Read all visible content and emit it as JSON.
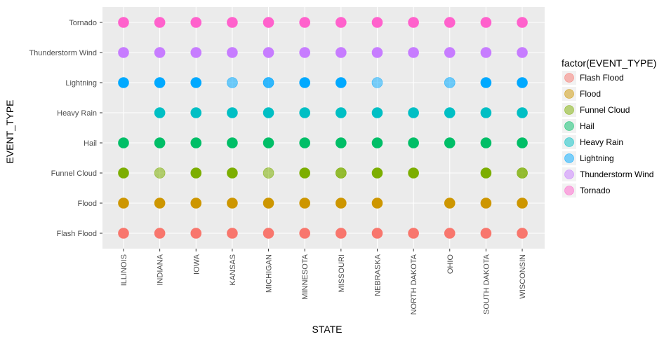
{
  "chart_data": {
    "type": "scatter",
    "xlabel": "STATE",
    "ylabel": "EVENT_TYPE",
    "grid": true,
    "legend_position": "right",
    "legend_title": "factor(EVENT_TYPE)",
    "categories": [
      "ILLINOIS",
      "INDIANA",
      "IOWA",
      "KANSAS",
      "MICHIGAN",
      "MINNESOTA",
      "MISSOURI",
      "NEBRASKA",
      "NORTH DAKOTA",
      "OHIO",
      "SOUTH DAKOTA",
      "WISCONSIN"
    ],
    "y_categories": [
      "Flash Flood",
      "Flood",
      "Funnel Cloud",
      "Hail",
      "Heavy Rain",
      "Lightning",
      "Thunderstorm Wind",
      "Tornado"
    ],
    "series": [
      {
        "name": "Flash Flood",
        "color": "#F8766D",
        "x": [
          "ILLINOIS",
          "INDIANA",
          "IOWA",
          "KANSAS",
          "MICHIGAN",
          "MINNESOTA",
          "MISSOURI",
          "NEBRASKA",
          "NORTH DAKOTA",
          "OHIO",
          "SOUTH DAKOTA",
          "WISCONSIN"
        ],
        "alpha": [
          1,
          1,
          1,
          1,
          1,
          1,
          1,
          1,
          1,
          1,
          1,
          1
        ]
      },
      {
        "name": "Flood",
        "color": "#CD9600",
        "x": [
          "ILLINOIS",
          "INDIANA",
          "IOWA",
          "KANSAS",
          "MICHIGAN",
          "MINNESOTA",
          "MISSOURI",
          "NEBRASKA",
          "OHIO",
          "SOUTH DAKOTA",
          "WISCONSIN"
        ],
        "alpha": [
          1,
          1,
          1,
          1,
          1,
          1,
          1,
          1,
          1,
          1,
          1
        ]
      },
      {
        "name": "Funnel Cloud",
        "color": "#7CAE00",
        "x": [
          "ILLINOIS",
          "INDIANA",
          "IOWA",
          "KANSAS",
          "MICHIGAN",
          "MINNESOTA",
          "MISSOURI",
          "NEBRASKA",
          "NORTH DAKOTA",
          "SOUTH DAKOTA",
          "WISCONSIN"
        ],
        "alpha": [
          1,
          0.55,
          1,
          1,
          0.55,
          1,
          0.8,
          1,
          1,
          1,
          0.8
        ]
      },
      {
        "name": "Hail",
        "color": "#00BE67",
        "x": [
          "ILLINOIS",
          "INDIANA",
          "IOWA",
          "KANSAS",
          "MICHIGAN",
          "MINNESOTA",
          "MISSOURI",
          "NEBRASKA",
          "NORTH DAKOTA",
          "OHIO",
          "SOUTH DAKOTA",
          "WISCONSIN"
        ],
        "alpha": [
          1,
          1,
          1,
          1,
          1,
          1,
          1,
          1,
          1,
          1,
          1,
          1
        ]
      },
      {
        "name": "Heavy Rain",
        "color": "#00BFC4",
        "x": [
          "INDIANA",
          "IOWA",
          "KANSAS",
          "MICHIGAN",
          "MINNESOTA",
          "MISSOURI",
          "NEBRASKA",
          "NORTH DAKOTA",
          "OHIO",
          "SOUTH DAKOTA",
          "WISCONSIN"
        ],
        "alpha": [
          1,
          1,
          1,
          1,
          1,
          1,
          1,
          1,
          1,
          1,
          1
        ]
      },
      {
        "name": "Lightning",
        "color": "#00A9FF",
        "x": [
          "ILLINOIS",
          "INDIANA",
          "IOWA",
          "KANSAS",
          "MICHIGAN",
          "MINNESOTA",
          "MISSOURI",
          "NEBRASKA",
          "OHIO",
          "SOUTH DAKOTA",
          "WISCONSIN"
        ],
        "alpha": [
          1,
          1,
          1,
          0.55,
          0.8,
          1,
          1,
          0.5,
          0.55,
          1,
          1
        ]
      },
      {
        "name": "Thunderstorm Wind",
        "color": "#C77CFF",
        "x": [
          "ILLINOIS",
          "INDIANA",
          "IOWA",
          "KANSAS",
          "MICHIGAN",
          "MINNESOTA",
          "MISSOURI",
          "NEBRASKA",
          "NORTH DAKOTA",
          "OHIO",
          "SOUTH DAKOTA",
          "WISCONSIN"
        ],
        "alpha": [
          1,
          1,
          1,
          1,
          1,
          1,
          1,
          1,
          1,
          1,
          1,
          1
        ]
      },
      {
        "name": "Tornado",
        "color": "#FF61CC",
        "x": [
          "ILLINOIS",
          "INDIANA",
          "IOWA",
          "KANSAS",
          "MICHIGAN",
          "MINNESOTA",
          "MISSOURI",
          "NEBRASKA",
          "NORTH DAKOTA",
          "OHIO",
          "SOUTH DAKOTA",
          "WISCONSIN"
        ],
        "alpha": [
          1,
          1,
          1,
          1,
          1,
          1,
          1,
          1,
          1,
          1,
          1,
          1
        ]
      }
    ]
  },
  "colors": {
    "panel_background": "#EBEBEB",
    "grid_major": "#FFFFFF",
    "tick_text": "#4D4D4D"
  }
}
